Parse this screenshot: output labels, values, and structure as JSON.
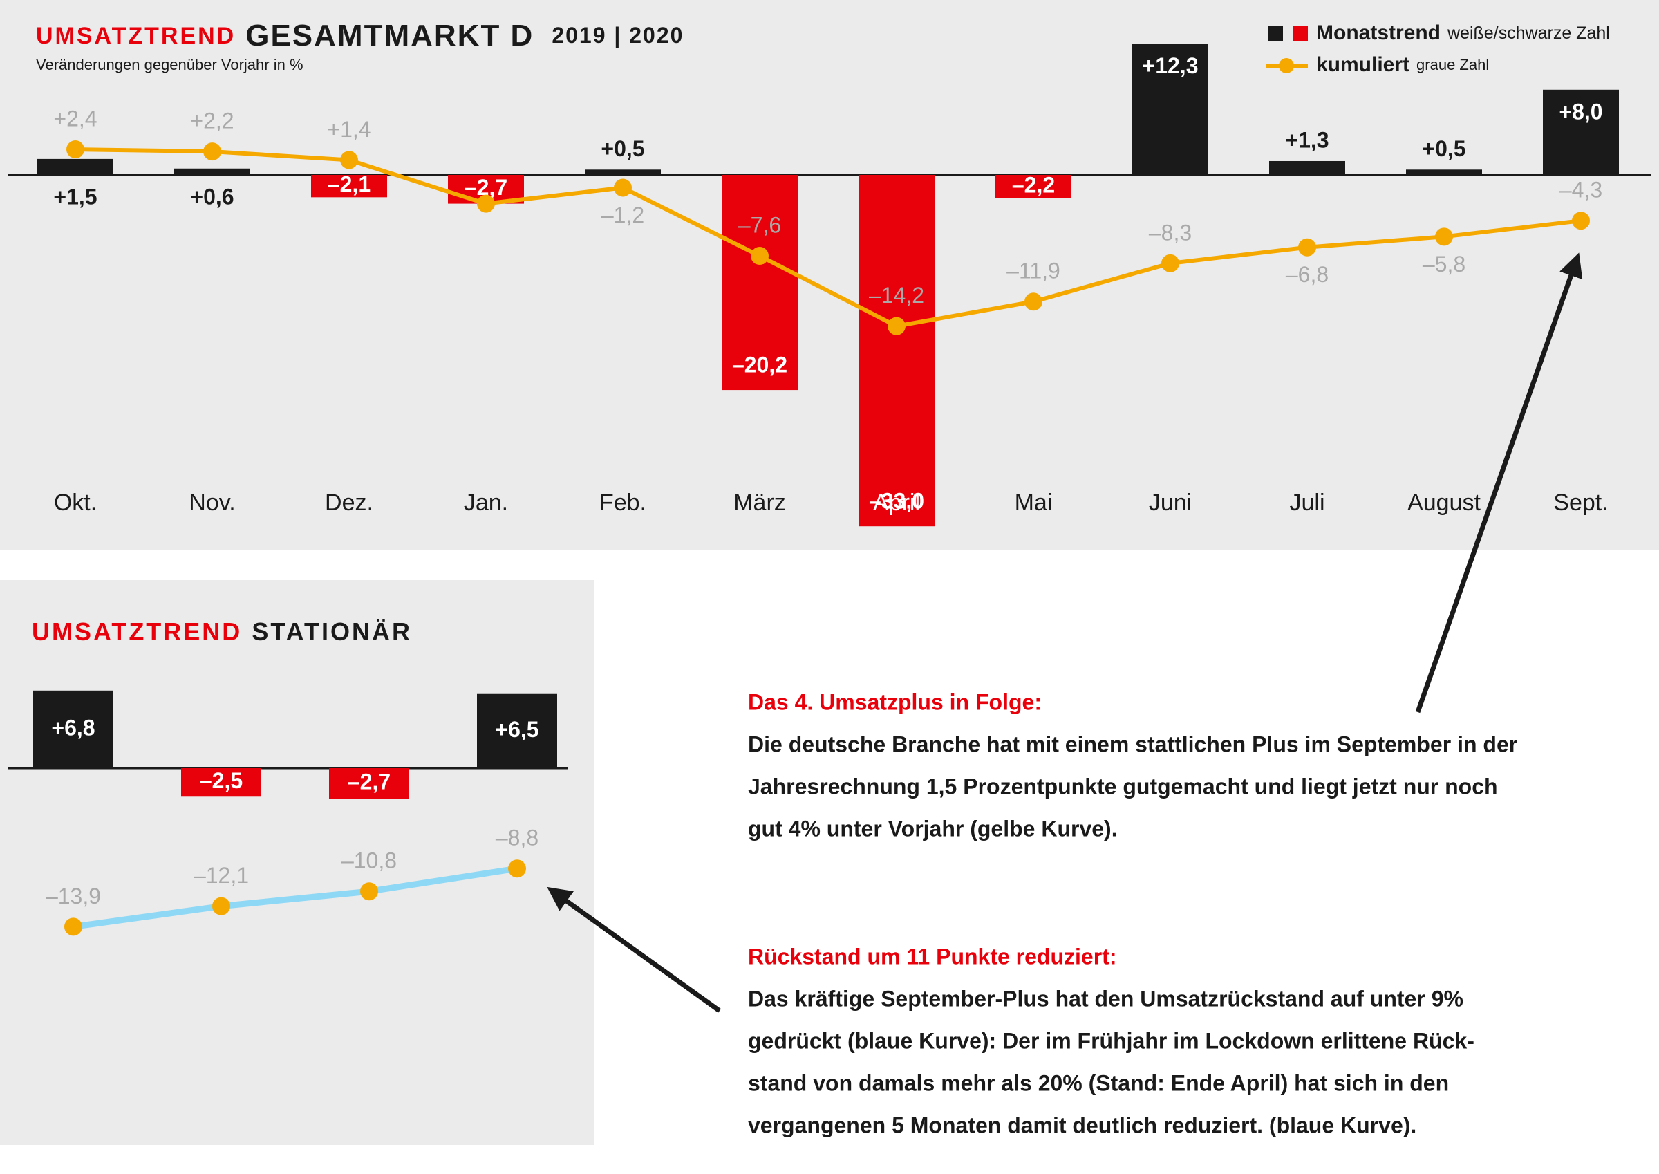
{
  "chart_data": [
    {
      "type": "bar",
      "title": "UMSATZTREND",
      "title_main": "GESAMTMARKT D",
      "title_period": "2019 | 2020",
      "subtitle": "Veränderungen gegenüber Vorjahr in %",
      "categories": [
        "Okt.",
        "Nov.",
        "Dez.",
        "Jan.",
        "Feb.",
        "März",
        "April",
        "Mai",
        "Juni",
        "Juli",
        "August",
        "Sept."
      ],
      "ylim": [
        -35,
        15
      ],
      "series": [
        {
          "type": "bar",
          "name": "Monatstrend",
          "note": "weiße/schwarze Zahl",
          "colors": {
            "positive": "#1a1a1a",
            "negative": "#e8000b"
          },
          "values": [
            1.5,
            0.6,
            -2.1,
            -2.7,
            0.5,
            -20.2,
            -33.0,
            -2.2,
            12.3,
            1.3,
            0.5,
            8.0
          ],
          "value_labels": [
            "+1,5",
            "+0,6",
            "–2,1",
            "–2,7",
            "+0,5",
            "–20,2",
            "–33,0",
            "–2,2",
            "+12,3",
            "+1,3",
            "+0,5",
            "+8,0"
          ]
        },
        {
          "type": "line",
          "name": "kumuliert",
          "note": "graue Zahl",
          "color": "#f5a800",
          "marker_color": "#f5a800",
          "label_color": "#a9a9a9",
          "values": [
            2.4,
            2.2,
            1.4,
            -2.7,
            -1.2,
            -7.6,
            -14.2,
            -11.9,
            -8.3,
            -6.8,
            -5.8,
            -4.3
          ],
          "value_labels": [
            "+2,4",
            "+2,2",
            "+1,4",
            null,
            "–1,2",
            "–7,6",
            "–14,2",
            "–11,9",
            "–8,3",
            "–6,8",
            "–5,8",
            "–4,3"
          ]
        }
      ]
    },
    {
      "type": "bar",
      "title": "UMSATZTREND",
      "title_main": "STATIONÄR",
      "ylim": [
        -16,
        8
      ],
      "series": [
        {
          "type": "bar",
          "colors": {
            "positive": "#1a1a1a",
            "negative": "#e8000b"
          },
          "values": [
            6.8,
            -2.5,
            -2.7,
            6.5
          ],
          "value_labels": [
            "+6,8",
            "–2,5",
            "–2,7",
            "+6,5"
          ]
        },
        {
          "type": "line",
          "color": "#8fd8f5",
          "marker_color": "#f5a800",
          "label_color": "#a9a9a9",
          "values": [
            -13.9,
            -12.1,
            -10.8,
            -8.8
          ],
          "value_labels": [
            "–13,9",
            "–12,1",
            "–10,8",
            "–8,8"
          ]
        }
      ]
    }
  ],
  "notes": [
    {
      "heading": "Das 4. Umsatzplus in Folge:",
      "lines": [
        "Die deutsche Branche hat mit einem stattlichen Plus im September in der",
        "Jahresrechnung 1,5 Prozentpunkte gutgemacht und liegt jetzt nur noch",
        "gut 4% unter Vorjahr (gelbe Kurve)."
      ]
    },
    {
      "heading": "Rückstand um 11 Punkte reduziert:",
      "lines": [
        "Das kräftige September-Plus hat den Umsatzrückstand auf unter 9%",
        "gedrückt (blaue Kurve): Der im Frühjahr im Lockdown erlittene Rück-",
        "stand von damals mehr als 20% (Stand: Ende April) hat sich in den",
        "vergangenen 5 Monaten damit deutlich reduziert. (blaue Kurve)."
      ]
    }
  ]
}
